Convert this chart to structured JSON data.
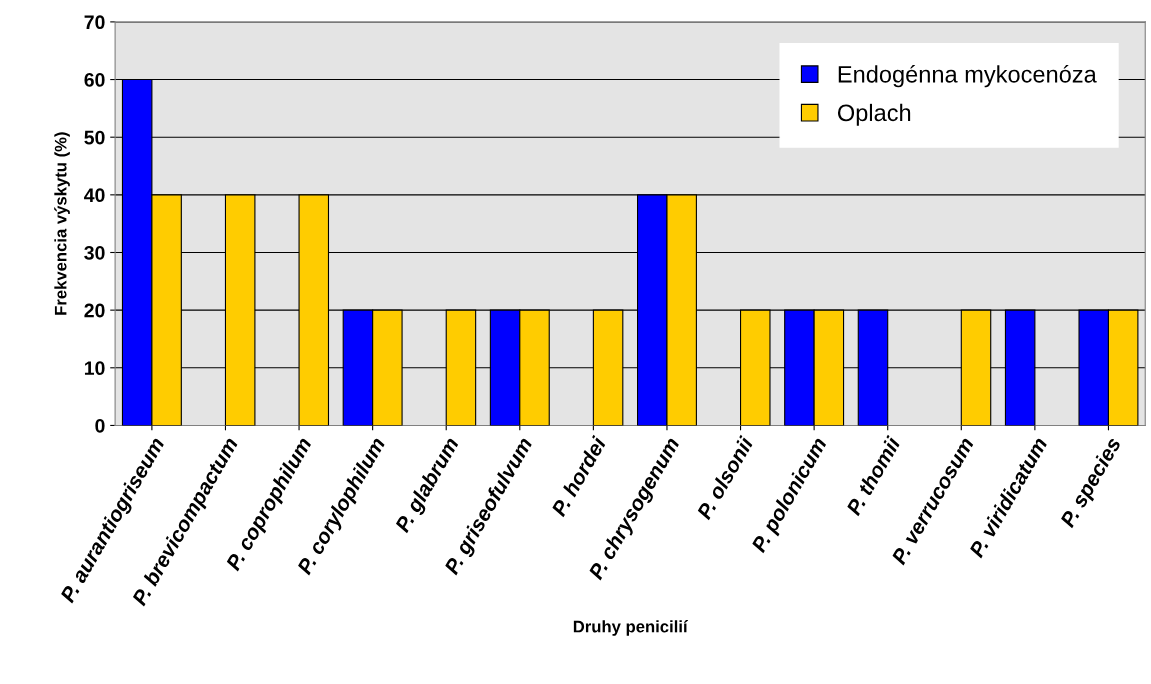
{
  "chart_data": {
    "type": "bar",
    "xlabel": "Druhy penicilií",
    "ylabel": "Frekvencia výskytu (%)",
    "categories": [
      "P. aurantiogriseum",
      "P. brevicompactum",
      "P. coprophilum",
      "P. corylophilum",
      "P. glabrum",
      "P. griseofulvum",
      "P. hordei",
      "P. chrysogenum",
      "P. olsonii",
      "P. polonicum",
      "P. thomii",
      "P. verrucosum",
      "P. viridicatum",
      "P. species"
    ],
    "series": [
      {
        "name": "Endogénna mykocenóza",
        "color": "#0000ff",
        "values": [
          60,
          null,
          null,
          20,
          null,
          20,
          null,
          40,
          null,
          20,
          20,
          null,
          20,
          20
        ]
      },
      {
        "name": "Oplach",
        "color": "#ffcc00",
        "values": [
          40,
          40,
          40,
          20,
          20,
          20,
          20,
          40,
          20,
          20,
          null,
          20,
          null,
          20
        ]
      }
    ],
    "ylim": [
      0,
      70
    ],
    "yticks": [
      0,
      10,
      20,
      30,
      40,
      50,
      60,
      70
    ],
    "grid": "y",
    "legend": "top right"
  }
}
